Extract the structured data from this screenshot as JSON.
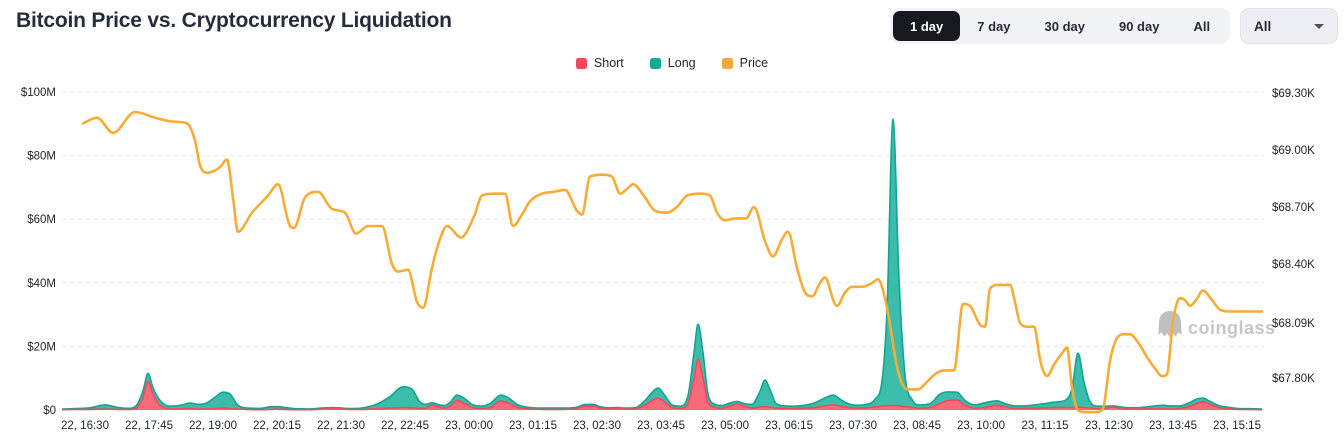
{
  "header": {
    "title": "Bitcoin Price vs. Cryptocurrency Liquidation",
    "ranges": [
      {
        "label": "1 day",
        "active": true
      },
      {
        "label": "7 day",
        "active": false
      },
      {
        "label": "30 day",
        "active": false
      },
      {
        "label": "90 day",
        "active": false
      },
      {
        "label": "All",
        "active": false
      }
    ],
    "dropdown": {
      "value": "All"
    }
  },
  "legend": [
    {
      "label": "Short",
      "color": "#F5475D"
    },
    {
      "label": "Long",
      "color": "#14A995"
    },
    {
      "label": "Price",
      "color": "#F5A73B"
    }
  ],
  "watermark": {
    "text": "coinglass",
    "color": "#c6c6c8"
  },
  "chart_data": {
    "type": "area+line",
    "title": "Bitcoin Price vs. Cryptocurrency Liquidation",
    "grid": "horizontal-dashed",
    "legend_position": "top-center",
    "colors": {
      "short_fill": "#F8697A",
      "short_stroke": "#F5475D",
      "long_fill": "#3CBDAB",
      "long_stroke": "#12A492",
      "price_stroke": "#F8AB35",
      "grid": "#e8eaee",
      "tick_text": "#20252d"
    },
    "left_axis": {
      "unit": "USD liquidations (millions)",
      "range": [
        0,
        100
      ],
      "ticks": [
        {
          "label": "$100M",
          "value": 100
        },
        {
          "label": "$80M",
          "value": 80
        },
        {
          "label": "$60M",
          "value": 60
        },
        {
          "label": "$40M",
          "value": 40
        },
        {
          "label": "$20M",
          "value": 20
        },
        {
          "label": "$0",
          "value": 0
        }
      ]
    },
    "right_axis": {
      "unit": "BTC price (thousand USD)",
      "ticks": [
        {
          "label": "$69.30K",
          "value": 69.3
        },
        {
          "label": "$69.00K",
          "value": 69.0
        },
        {
          "label": "$68.70K",
          "value": 68.7
        },
        {
          "label": "$68.40K",
          "value": 68.4
        },
        {
          "label": "$68.09K",
          "value": 68.09
        },
        {
          "label": "$67.80K",
          "value": 67.8
        }
      ]
    },
    "x_axis": {
      "ticks": [
        "22, 16:30",
        "22, 17:45",
        "22, 19:00",
        "22, 20:15",
        "22, 21:30",
        "22, 22:45",
        "23, 00:00",
        "23, 01:15",
        "23, 02:30",
        "23, 03:45",
        "23, 05:00",
        "23, 06:15",
        "23, 07:30",
        "23, 08:45",
        "23, 10:00",
        "23, 11:15",
        "23, 12:30",
        "23, 13:45",
        "23, 15:15"
      ]
    },
    "series_note": "x is plot position 0-1200 (time from 22,16:30 to 23,15:15); liquidation rows are [x, shortM, longM] stacked; price rows are [x, priceK]",
    "liquidation_series": [
      [
        0,
        0.1,
        0.2
      ],
      [
        13,
        0.15,
        0.3
      ],
      [
        28,
        0.2,
        0.5
      ],
      [
        43,
        0.3,
        1.3
      ],
      [
        56,
        0.2,
        0.6
      ],
      [
        66,
        0.15,
        0.4
      ],
      [
        74,
        0.5,
        0.8
      ],
      [
        81,
        4,
        2
      ],
      [
        86,
        9,
        2.5
      ],
      [
        91,
        5,
        2
      ],
      [
        98,
        1.5,
        1.5
      ],
      [
        108,
        0.4,
        0.8
      ],
      [
        120,
        0.4,
        1.2
      ],
      [
        128,
        0.5,
        1.7
      ],
      [
        136,
        0.3,
        1.5
      ],
      [
        143,
        0.3,
        1.7
      ],
      [
        153,
        0.5,
        3.5
      ],
      [
        161,
        0.6,
        5
      ],
      [
        168,
        0.5,
        4.5
      ],
      [
        176,
        0.3,
        1.2
      ],
      [
        186,
        0.15,
        0.45
      ],
      [
        198,
        0.1,
        0.4
      ],
      [
        208,
        0.2,
        0.8
      ],
      [
        215,
        0.25,
        0.85
      ],
      [
        223,
        0.2,
        0.6
      ],
      [
        233,
        0.1,
        0.3
      ],
      [
        248,
        0.1,
        0.25
      ],
      [
        260,
        0.3,
        0.3
      ],
      [
        271,
        0.5,
        0.3
      ],
      [
        280,
        0.3,
        0.3
      ],
      [
        290,
        0.15,
        0.3
      ],
      [
        303,
        0.2,
        0.6
      ],
      [
        316,
        0.4,
        1.6
      ],
      [
        328,
        0.6,
        3.6
      ],
      [
        341,
        0.8,
        6.5
      ],
      [
        350,
        0.7,
        5.8
      ],
      [
        358,
        0.5,
        2
      ],
      [
        364,
        0.6,
        1.2
      ],
      [
        370,
        1.5,
        0.8
      ],
      [
        376,
        1,
        0.7
      ],
      [
        383,
        0.6,
        0.8
      ],
      [
        388,
        1.2,
        1.2
      ],
      [
        395,
        3,
        1.7
      ],
      [
        403,
        2,
        1.5
      ],
      [
        410,
        0.8,
        1
      ],
      [
        418,
        0.5,
        0.7
      ],
      [
        428,
        0.8,
        1.2
      ],
      [
        439,
        2.8,
        1.9
      ],
      [
        446,
        2.2,
        1.7
      ],
      [
        456,
        0.8,
        0.8
      ],
      [
        468,
        0.3,
        0.5
      ],
      [
        483,
        0.2,
        0.4
      ],
      [
        498,
        0.2,
        0.4
      ],
      [
        513,
        0.3,
        0.5
      ],
      [
        523,
        1.2,
        0.5
      ],
      [
        531,
        1.3,
        0.5
      ],
      [
        538,
        0.6,
        0.4
      ],
      [
        548,
        0.3,
        0.4
      ],
      [
        555,
        0.5,
        0.3
      ],
      [
        563,
        0.3,
        0.3
      ],
      [
        573,
        0.3,
        0.4
      ],
      [
        583,
        1.5,
        1.5
      ],
      [
        590,
        3,
        2.5
      ],
      [
        596,
        3.7,
        3.2
      ],
      [
        603,
        2.5,
        2
      ],
      [
        610,
        0.8,
        0.8
      ],
      [
        618,
        0.5,
        0.7
      ],
      [
        626,
        2,
        2.5
      ],
      [
        632,
        10,
        8
      ],
      [
        636,
        16,
        11
      ],
      [
        641,
        10,
        8
      ],
      [
        646,
        2.5,
        2.5
      ],
      [
        653,
        0.8,
        1
      ],
      [
        660,
        0.6,
        0.8
      ],
      [
        668,
        1.2,
        1
      ],
      [
        675,
        1.9,
        0.8
      ],
      [
        682,
        1.2,
        0.8
      ],
      [
        690,
        0.6,
        1.2
      ],
      [
        698,
        0.9,
        5
      ],
      [
        703,
        1,
        8.4
      ],
      [
        708,
        0.9,
        5.5
      ],
      [
        714,
        0.6,
        1.5
      ],
      [
        723,
        0.5,
        0.8
      ],
      [
        733,
        0.5,
        0.7
      ],
      [
        743,
        0.6,
        0.9
      ],
      [
        753,
        0.8,
        1.5
      ],
      [
        763,
        1.3,
        2.5
      ],
      [
        771,
        1.6,
        3.1
      ],
      [
        778,
        1.2,
        2.2
      ],
      [
        786,
        0.8,
        1.2
      ],
      [
        794,
        0.6,
        0.9
      ],
      [
        803,
        0.7,
        1
      ],
      [
        813,
        0.9,
        2.5
      ],
      [
        820,
        1.2,
        8
      ],
      [
        825,
        1.3,
        30
      ],
      [
        831,
        1.4,
        90
      ],
      [
        837,
        1.3,
        40
      ],
      [
        843,
        1,
        10
      ],
      [
        850,
        0.8,
        2.5
      ],
      [
        858,
        0.6,
        1
      ],
      [
        868,
        0.8,
        1.2
      ],
      [
        878,
        2,
        3
      ],
      [
        886,
        3,
        2.7
      ],
      [
        895,
        3.1,
        2.5
      ],
      [
        903,
        1.5,
        1.5
      ],
      [
        913,
        0.6,
        1
      ],
      [
        923,
        0.8,
        1.5
      ],
      [
        935,
        1.5,
        1.4
      ],
      [
        943,
        1,
        1
      ],
      [
        953,
        0.5,
        0.8
      ],
      [
        963,
        0.5,
        0.8
      ],
      [
        973,
        0.6,
        1
      ],
      [
        983,
        0.7,
        1.3
      ],
      [
        993,
        0.8,
        1.7
      ],
      [
        1003,
        0.8,
        2.2
      ],
      [
        1010,
        0.8,
        6
      ],
      [
        1016,
        0.9,
        17
      ],
      [
        1022,
        0.8,
        8
      ],
      [
        1028,
        0.6,
        2
      ],
      [
        1036,
        0.4,
        0.8
      ],
      [
        1044,
        0.6,
        0.6
      ],
      [
        1051,
        0.9,
        0.4
      ],
      [
        1058,
        0.6,
        0.4
      ],
      [
        1068,
        0.3,
        0.4
      ],
      [
        1078,
        0.3,
        0.5
      ],
      [
        1088,
        0.4,
        0.7
      ],
      [
        1096,
        0.4,
        1
      ],
      [
        1101,
        0.4,
        1.1
      ],
      [
        1108,
        0.4,
        0.9
      ],
      [
        1118,
        0.5,
        0.8
      ],
      [
        1128,
        1.2,
        1.2
      ],
      [
        1136,
        2.2,
        1.4
      ],
      [
        1141,
        2.6,
        1.1
      ],
      [
        1148,
        1.8,
        0.9
      ],
      [
        1156,
        0.8,
        0.7
      ],
      [
        1165,
        0.4,
        0.5
      ],
      [
        1175,
        0.2,
        0.3
      ],
      [
        1186,
        0.15,
        0.25
      ],
      [
        1200,
        0.1,
        0.2
      ]
    ],
    "price_series": [
      [
        21,
        69.14
      ],
      [
        35,
        69.17
      ],
      [
        51,
        69.09
      ],
      [
        73,
        69.2
      ],
      [
        93,
        69.17
      ],
      [
        110,
        69.15
      ],
      [
        125,
        69.14
      ],
      [
        133,
        69.05
      ],
      [
        138,
        68.92
      ],
      [
        145,
        68.88
      ],
      [
        158,
        68.91
      ],
      [
        165,
        68.95
      ],
      [
        171,
        68.75
      ],
      [
        176,
        68.57
      ],
      [
        190,
        68.67
      ],
      [
        206,
        68.76
      ],
      [
        216,
        68.82
      ],
      [
        228,
        68.6
      ],
      [
        232,
        68.59
      ],
      [
        243,
        68.75
      ],
      [
        256,
        68.78
      ],
      [
        270,
        68.69
      ],
      [
        283,
        68.67
      ],
      [
        294,
        68.56
      ],
      [
        306,
        68.6
      ],
      [
        320,
        68.6
      ],
      [
        330,
        68.4
      ],
      [
        336,
        68.36
      ],
      [
        346,
        68.37
      ],
      [
        355,
        68.2
      ],
      [
        361,
        68.17
      ],
      [
        370,
        68.38
      ],
      [
        376,
        68.5
      ],
      [
        385,
        68.6
      ],
      [
        399,
        68.54
      ],
      [
        412,
        68.65
      ],
      [
        420,
        68.76
      ],
      [
        432,
        68.77
      ],
      [
        443,
        68.77
      ],
      [
        451,
        68.6
      ],
      [
        460,
        68.66
      ],
      [
        468,
        68.73
      ],
      [
        480,
        68.77
      ],
      [
        492,
        68.78
      ],
      [
        503,
        68.79
      ],
      [
        515,
        68.68
      ],
      [
        520,
        68.66
      ],
      [
        528,
        68.86
      ],
      [
        540,
        68.87
      ],
      [
        550,
        68.86
      ],
      [
        558,
        68.77
      ],
      [
        566,
        68.8
      ],
      [
        571,
        68.82
      ],
      [
        583,
        68.75
      ],
      [
        593,
        68.68
      ],
      [
        605,
        68.67
      ],
      [
        615,
        68.7
      ],
      [
        625,
        68.76
      ],
      [
        638,
        68.77
      ],
      [
        648,
        68.76
      ],
      [
        655,
        68.67
      ],
      [
        663,
        68.63
      ],
      [
        673,
        68.64
      ],
      [
        684,
        68.64
      ],
      [
        692,
        68.7
      ],
      [
        703,
        68.52
      ],
      [
        711,
        68.44
      ],
      [
        720,
        68.53
      ],
      [
        726,
        68.57
      ],
      [
        735,
        68.38
      ],
      [
        743,
        68.25
      ],
      [
        750,
        68.23
      ],
      [
        758,
        68.3
      ],
      [
        763,
        68.33
      ],
      [
        772,
        68.2
      ],
      [
        775,
        68.18
      ],
      [
        783,
        68.25
      ],
      [
        790,
        68.28
      ],
      [
        800,
        68.28
      ],
      [
        810,
        68.3
      ],
      [
        816,
        68.32
      ],
      [
        823,
        68.22
      ],
      [
        828,
        68.08
      ],
      [
        835,
        67.86
      ],
      [
        841,
        67.76
      ],
      [
        848,
        67.74
      ],
      [
        856,
        67.74
      ],
      [
        865,
        67.78
      ],
      [
        873,
        67.82
      ],
      [
        882,
        67.84
      ],
      [
        892,
        67.84
      ],
      [
        901,
        68.19
      ],
      [
        908,
        68.18
      ],
      [
        918,
        68.08
      ],
      [
        923,
        68.07
      ],
      [
        928,
        68.27
      ],
      [
        936,
        68.29
      ],
      [
        948,
        68.29
      ],
      [
        953,
        68.2
      ],
      [
        958,
        68.09
      ],
      [
        965,
        68.07
      ],
      [
        972,
        68.07
      ],
      [
        978,
        67.9
      ],
      [
        981,
        67.84
      ],
      [
        985,
        67.81
      ],
      [
        992,
        67.87
      ],
      [
        1000,
        67.93
      ],
      [
        1005,
        67.96
      ],
      [
        1010,
        67.75
      ],
      [
        1016,
        67.63
      ],
      [
        1024,
        67.62
      ],
      [
        1033,
        67.62
      ],
      [
        1041,
        67.64
      ],
      [
        1048,
        67.89
      ],
      [
        1055,
        68.01
      ],
      [
        1062,
        68.03
      ],
      [
        1068,
        68.03
      ],
      [
        1077,
        67.98
      ],
      [
        1085,
        67.91
      ],
      [
        1093,
        67.85
      ],
      [
        1100,
        67.81
      ],
      [
        1105,
        67.82
      ],
      [
        1111,
        68.1
      ],
      [
        1118,
        68.22
      ],
      [
        1123,
        68.21
      ],
      [
        1128,
        68.18
      ],
      [
        1134,
        68.21
      ],
      [
        1141,
        68.26
      ],
      [
        1150,
        68.21
      ],
      [
        1158,
        68.16
      ],
      [
        1168,
        68.15
      ],
      [
        1180,
        68.15
      ],
      [
        1200,
        68.15
      ]
    ]
  }
}
